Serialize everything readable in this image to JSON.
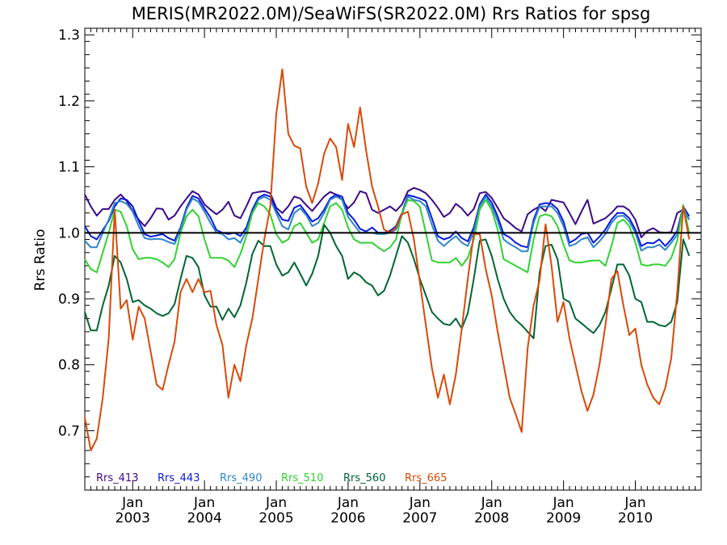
{
  "chart_data": {
    "type": "line",
    "title": "MERIS(MR2022.0M)/SeaWiFS(SR2022.0M)  Rrs Ratios for spsg",
    "xlabel": "",
    "ylabel": "Rrs Ratio",
    "xlim": [
      "2002-05",
      "2010-12"
    ],
    "ylim": [
      0.61,
      1.31
    ],
    "yticks": [
      0.7,
      0.8,
      0.9,
      1.0,
      1.1,
      1.2,
      1.3
    ],
    "ytick_labels": [
      "0.7",
      "0.8",
      "0.9",
      "1.0",
      "1.1",
      "1.2",
      "1.3"
    ],
    "xticks": [
      {
        "month": "Jan",
        "year": "2003",
        "date": "2003-01"
      },
      {
        "month": "Jan",
        "year": "2004",
        "date": "2004-01"
      },
      {
        "month": "Jan",
        "year": "2005",
        "date": "2005-01"
      },
      {
        "month": "Jan",
        "year": "2006",
        "date": "2006-01"
      },
      {
        "month": "Jan",
        "year": "2007",
        "date": "2007-01"
      },
      {
        "month": "Jan",
        "year": "2008",
        "date": "2008-01"
      },
      {
        "month": "Jan",
        "year": "2009",
        "date": "2009-01"
      },
      {
        "month": "Jan",
        "year": "2010",
        "date": "2010-01"
      }
    ],
    "reference_line": 1.0,
    "legend_position": "bottom-left",
    "x_start": "2002-05",
    "series": [
      {
        "name": "Rrs_413",
        "color": "#3b0a8a",
        "values": [
          1.058,
          1.04,
          1.026,
          1.036,
          1.036,
          1.05,
          1.058,
          1.048,
          1.033,
          1.02,
          1.01,
          1.022,
          1.037,
          1.036,
          1.02,
          1.026,
          1.04,
          1.052,
          1.063,
          1.058,
          1.043,
          1.035,
          1.028,
          1.035,
          1.047,
          1.026,
          1.022,
          1.04,
          1.06,
          1.062,
          1.063,
          1.06,
          1.038,
          1.03,
          1.04,
          1.055,
          1.052,
          1.042,
          1.033,
          1.044,
          1.055,
          1.062,
          1.058,
          1.05,
          1.037,
          1.046,
          1.063,
          1.06,
          1.035,
          1.03,
          1.035,
          1.04,
          1.033,
          1.043,
          1.063,
          1.068,
          1.065,
          1.06,
          1.05,
          1.038,
          1.024,
          1.03,
          1.044,
          1.037,
          1.026,
          1.036,
          1.06,
          1.062,
          1.053,
          1.038,
          1.022,
          1.015,
          1.007,
          1.002,
          1.028,
          1.035,
          1.04,
          1.033,
          1.05,
          1.048,
          1.046,
          1.03,
          1.013,
          1.032,
          1.05,
          1.014,
          1.018,
          1.022,
          1.03,
          1.04,
          1.04,
          1.034,
          1.02,
          0.993,
          1.003,
          1.007,
          1.001,
          1.0,
          1.001,
          1.03,
          1.035,
          1.02
        ]
      },
      {
        "name": "Rrs_443",
        "color": "#0a1adb",
        "values": [
          1.01,
          0.995,
          0.99,
          1.004,
          1.018,
          1.04,
          1.052,
          1.05,
          1.04,
          1.018,
          0.998,
          0.994,
          0.996,
          0.998,
          0.992,
          0.988,
          1.008,
          1.038,
          1.056,
          1.052,
          1.037,
          1.023,
          1.004,
          1.0,
          0.998,
          1.0,
          0.995,
          1.008,
          1.035,
          1.053,
          1.058,
          1.055,
          1.034,
          1.02,
          1.018,
          1.038,
          1.042,
          1.03,
          1.017,
          1.022,
          1.035,
          1.052,
          1.058,
          1.055,
          1.03,
          1.02,
          1.006,
          1.002,
          1.008,
          1.0,
          1.0,
          1.003,
          1.01,
          1.03,
          1.057,
          1.055,
          1.052,
          1.048,
          1.022,
          0.995,
          0.99,
          0.993,
          1.002,
          0.992,
          0.987,
          1.008,
          1.043,
          1.058,
          1.046,
          1.025,
          0.998,
          0.993,
          0.985,
          0.98,
          0.978,
          1.02,
          1.043,
          1.045,
          1.044,
          1.036,
          1.017,
          0.985,
          0.99,
          0.998,
          1.0,
          0.985,
          0.994,
          1.005,
          1.02,
          1.03,
          1.03,
          1.022,
          1.005,
          0.98,
          0.985,
          0.984,
          0.99,
          0.98,
          0.99,
          1.003,
          1.04,
          1.025
        ]
      },
      {
        "name": "Rrs_490",
        "color": "#2e86c8",
        "values": [
          0.988,
          0.978,
          0.978,
          1.0,
          1.02,
          1.045,
          1.048,
          1.044,
          1.032,
          1.01,
          0.992,
          0.99,
          0.991,
          0.99,
          0.986,
          0.983,
          1.005,
          1.035,
          1.052,
          1.047,
          1.032,
          1.015,
          1.0,
          0.998,
          0.99,
          0.992,
          0.985,
          1.003,
          1.03,
          1.05,
          1.055,
          1.05,
          1.03,
          1.01,
          1.005,
          1.03,
          1.037,
          1.027,
          1.01,
          1.015,
          1.03,
          1.05,
          1.055,
          1.05,
          1.024,
          1.012,
          1.0,
          1.0,
          1.0,
          0.998,
          0.998,
          1.0,
          1.005,
          1.027,
          1.055,
          1.05,
          1.048,
          1.04,
          1.012,
          0.988,
          0.98,
          0.988,
          0.995,
          0.985,
          0.98,
          1.002,
          1.04,
          1.055,
          1.04,
          1.018,
          0.99,
          0.983,
          0.978,
          0.972,
          0.972,
          1.015,
          1.04,
          1.04,
          1.04,
          1.03,
          1.01,
          0.98,
          0.983,
          0.99,
          0.993,
          0.978,
          0.987,
          0.998,
          1.015,
          1.025,
          1.026,
          1.017,
          1.0,
          0.973,
          0.978,
          0.978,
          0.982,
          0.974,
          0.985,
          0.997,
          1.037,
          1.02
        ]
      },
      {
        "name": "Rrs_510",
        "color": "#32d232",
        "values": [
          0.96,
          0.945,
          0.94,
          0.97,
          1.0,
          1.035,
          1.032,
          1.01,
          0.975,
          0.96,
          0.962,
          0.962,
          0.96,
          0.955,
          0.948,
          0.96,
          1.0,
          1.025,
          1.035,
          1.025,
          0.99,
          0.962,
          0.962,
          0.962,
          0.958,
          0.948,
          0.968,
          0.995,
          1.03,
          1.045,
          1.04,
          1.028,
          0.998,
          0.985,
          0.99,
          1.01,
          1.015,
          1.0,
          0.985,
          0.99,
          1.015,
          1.04,
          1.045,
          1.035,
          1.008,
          0.99,
          0.985,
          0.985,
          0.985,
          0.978,
          0.972,
          0.978,
          0.99,
          1.03,
          1.05,
          1.048,
          1.04,
          1.0,
          0.958,
          0.955,
          0.955,
          0.955,
          0.962,
          0.95,
          0.962,
          0.99,
          1.035,
          1.05,
          1.035,
          1.005,
          0.96,
          0.955,
          0.95,
          0.945,
          0.94,
          0.99,
          1.025,
          1.028,
          1.025,
          1.01,
          0.982,
          0.958,
          0.955,
          0.955,
          0.957,
          0.958,
          0.958,
          0.95,
          0.98,
          1.015,
          1.02,
          1.01,
          0.985,
          0.952,
          0.95,
          0.952,
          0.952,
          0.95,
          0.962,
          0.988,
          1.042,
          1.0
        ]
      },
      {
        "name": "Rrs_560",
        "color": "#006633",
        "values": [
          0.88,
          0.852,
          0.852,
          0.89,
          0.92,
          0.965,
          0.955,
          0.93,
          0.895,
          0.898,
          0.89,
          0.885,
          0.878,
          0.874,
          0.878,
          0.892,
          0.93,
          0.965,
          0.962,
          0.948,
          0.905,
          0.888,
          0.888,
          0.868,
          0.885,
          0.872,
          0.89,
          0.925,
          0.968,
          0.988,
          0.98,
          0.98,
          0.952,
          0.935,
          0.94,
          0.955,
          0.938,
          0.92,
          0.938,
          0.965,
          1.012,
          1.0,
          0.98,
          0.965,
          0.93,
          0.94,
          0.935,
          0.925,
          0.92,
          0.905,
          0.912,
          0.935,
          0.965,
          0.995,
          0.985,
          0.96,
          0.93,
          0.905,
          0.88,
          0.87,
          0.862,
          0.86,
          0.87,
          0.855,
          0.878,
          0.93,
          0.988,
          0.99,
          0.965,
          0.93,
          0.9,
          0.88,
          0.868,
          0.86,
          0.85,
          0.84,
          0.94,
          0.98,
          0.982,
          0.96,
          0.9,
          0.895,
          0.87,
          0.863,
          0.855,
          0.848,
          0.86,
          0.88,
          0.915,
          0.952,
          0.952,
          0.935,
          0.9,
          0.895,
          0.865,
          0.865,
          0.86,
          0.858,
          0.865,
          0.895,
          0.99,
          0.965
        ]
      },
      {
        "name": "Rrs_665",
        "color": "#d84a08",
        "values": [
          0.72,
          0.67,
          0.688,
          0.75,
          0.84,
          1.035,
          0.885,
          0.898,
          0.838,
          0.888,
          0.87,
          0.82,
          0.77,
          0.762,
          0.8,
          0.835,
          0.91,
          0.93,
          0.91,
          0.93,
          0.91,
          0.912,
          0.86,
          0.83,
          0.75,
          0.8,
          0.775,
          0.83,
          0.87,
          0.93,
          0.99,
          1.04,
          1.18,
          1.248,
          1.15,
          1.132,
          1.128,
          1.07,
          1.045,
          1.075,
          1.12,
          1.143,
          1.13,
          1.08,
          1.165,
          1.13,
          1.19,
          1.125,
          1.07,
          1.04,
          1.005,
          1.0,
          1.008,
          1.028,
          1.032,
          0.99,
          0.925,
          0.86,
          0.795,
          0.75,
          0.785,
          0.74,
          0.785,
          0.855,
          0.93,
          0.998,
          0.998,
          0.945,
          0.905,
          0.85,
          0.8,
          0.75,
          0.725,
          0.698,
          0.825,
          0.89,
          0.928,
          1.013,
          0.95,
          0.865,
          0.895,
          0.84,
          0.8,
          0.76,
          0.73,
          0.755,
          0.8,
          0.86,
          0.93,
          0.942,
          0.89,
          0.845,
          0.855,
          0.8,
          0.77,
          0.75,
          0.74,
          0.765,
          0.81,
          0.91,
          1.04,
          0.99
        ]
      }
    ]
  }
}
